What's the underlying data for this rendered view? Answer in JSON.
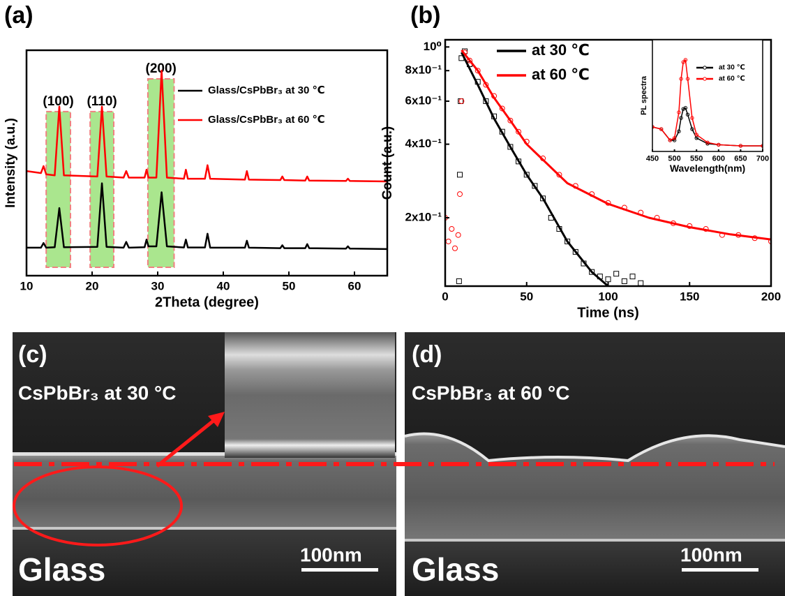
{
  "panel_labels": [
    "(a)",
    "(b)",
    "(c)",
    "(d)"
  ],
  "sem_images": [
    {
      "caption": "CsPbBr₃ at  30 °C",
      "substrate": "Glass",
      "scale_bar": "100nm"
    },
    {
      "caption": "CsPbBr₃ at  60 °C",
      "substrate": "Glass",
      "scale_bar": "100nm"
    }
  ],
  "chart_data": [
    {
      "type": "line",
      "xlabel": "2Theta (degree)",
      "ylabel": "Intensity (a.u.)",
      "xlim": [
        10,
        65
      ],
      "xticks": [
        10,
        20,
        30,
        40,
        50,
        60
      ],
      "ylim": [
        0,
        100
      ],
      "highlights": [
        {
          "label": "(100)",
          "range": [
            13,
            16.7
          ],
          "top": 72.8
        },
        {
          "label": "(110)",
          "range": [
            19.7,
            23.3
          ],
          "top": 72.8
        },
        {
          "label": "(200)",
          "range": [
            28.5,
            32.5
          ],
          "top": 87.3
        }
      ],
      "highlight_color": "#9be27a",
      "x": [
        10,
        12.2,
        12.6,
        13,
        14.3,
        15,
        15.7,
        20.8,
        21.5,
        22.2,
        24.8,
        25.2,
        25.6,
        28,
        28.3,
        28.6,
        29.8,
        30.6,
        31.4,
        34,
        34.3,
        34.6,
        37.2,
        37.6,
        38,
        43.3,
        43.6,
        43.9,
        48.7,
        49,
        49.3,
        52.5,
        52.8,
        53.1,
        58.7,
        59,
        59.3,
        65
      ],
      "series": [
        {
          "name": "Glass/CsPbBr₃ at 30 ℃",
          "color": "#000000",
          "line": true,
          "values": [
            12.4,
            12.4,
            14.5,
            12.4,
            12.6,
            30,
            12.6,
            12.8,
            41,
            12.8,
            12.4,
            15,
            12.4,
            12.6,
            16,
            13,
            13,
            37,
            13,
            12.5,
            16,
            12.5,
            12.5,
            18.6,
            12.4,
            12.4,
            15.5,
            12.4,
            12.2,
            13.5,
            12.2,
            12.2,
            14,
            12.2,
            12,
            13,
            12,
            11.8
          ]
        },
        {
          "name": "Glass/CsPbBr₃ at 60 ℃",
          "color": "#ff0000",
          "line": true,
          "values": [
            46.4,
            45.5,
            48.6,
            45,
            44.5,
            75,
            44.5,
            44,
            75,
            44,
            43.5,
            46.4,
            43.5,
            43.5,
            47,
            43.5,
            43.5,
            91,
            43.5,
            43,
            47,
            43,
            43,
            49,
            43,
            42.6,
            46.4,
            42.6,
            42.4,
            44,
            42.4,
            42.2,
            44,
            42.2,
            42,
            43,
            42,
            41.8
          ]
        }
      ]
    },
    {
      "type": "line",
      "xlabel": "Time (ns)",
      "ylabel": "Count (a.u.)",
      "log_y": true,
      "xlim": [
        0,
        200
      ],
      "xticks": [
        0,
        50,
        100,
        150,
        200
      ],
      "ylim": [
        0.105,
        1.07
      ],
      "yticks": [
        {
          "value": 1,
          "label": "10⁰"
        },
        {
          "value": 0.8,
          "label": "8x10⁻¹"
        },
        {
          "value": 0.6,
          "label": "6x10⁻¹"
        },
        {
          "value": 0.4,
          "label": "4x10⁻¹"
        },
        {
          "value": 0.2,
          "label": "2x10⁻¹"
        }
      ],
      "series": [
        {
          "color": "#000000",
          "marker": "square",
          "x": [
            8.5,
            9,
            9.5,
            10,
            12,
            15,
            20,
            25,
            30,
            35,
            40,
            45,
            50,
            55,
            60,
            65,
            70,
            75,
            80,
            85,
            90,
            95,
            100,
            105,
            110,
            115,
            120
          ],
          "values": [
            0.11,
            0.3,
            0.6,
            0.9,
            0.96,
            0.85,
            0.72,
            0.6,
            0.52,
            0.45,
            0.39,
            0.34,
            0.3,
            0.27,
            0.24,
            0.2,
            0.18,
            0.16,
            0.145,
            0.13,
            0.12,
            0.115,
            0.112,
            0.118,
            0.11,
            0.115,
            0.108
          ]
        },
        {
          "color": "#ff0000",
          "marker": "circle",
          "x": [
            0,
            2,
            4,
            6,
            8,
            9,
            10,
            12,
            15,
            20,
            25,
            30,
            35,
            40,
            45,
            50,
            60,
            70,
            80,
            90,
            100,
            110,
            120,
            130,
            140,
            150,
            160,
            170,
            180,
            190,
            200
          ],
          "values": [
            0.2,
            0.16,
            0.18,
            0.15,
            0.17,
            0.25,
            0.6,
            0.95,
            0.88,
            0.8,
            0.7,
            0.63,
            0.56,
            0.5,
            0.45,
            0.41,
            0.35,
            0.3,
            0.27,
            0.25,
            0.23,
            0.22,
            0.21,
            0.2,
            0.19,
            0.185,
            0.18,
            0.17,
            0.17,
            0.165,
            0.16
          ]
        },
        {
          "name": "at 30 ℃",
          "color": "#000000",
          "line": true,
          "x": [
            10,
            20,
            30,
            40,
            50,
            60,
            75,
            90,
            100
          ],
          "values": [
            0.95,
            0.7,
            0.51,
            0.39,
            0.3,
            0.24,
            0.16,
            0.12,
            0.105
          ]
        },
        {
          "name": "at 60 ℃",
          "color": "#ff0000",
          "line": true,
          "x": [
            10,
            20,
            30,
            40,
            50,
            75,
            100,
            125,
            150,
            175,
            200
          ],
          "values": [
            0.97,
            0.8,
            0.62,
            0.5,
            0.4,
            0.277,
            0.228,
            0.2,
            0.183,
            0.171,
            0.163
          ]
        }
      ]
    },
    {
      "type": "line",
      "xlabel": "Wavelength(nm)",
      "ylabel": "PL spectra",
      "xlim": [
        450,
        700
      ],
      "xticks": [
        450,
        500,
        550,
        600,
        650,
        700
      ],
      "ylim": [
        0,
        1
      ],
      "x": [
        450,
        470,
        490,
        500,
        510,
        515,
        520,
        525,
        530,
        540,
        550,
        575,
        600,
        650,
        700
      ],
      "series": [
        {
          "name": "at 30 ℃",
          "color": "#000000",
          "line": true,
          "marker": "circle",
          "values": [
            0.22,
            0.2,
            0.1,
            0.1,
            0.18,
            0.3,
            0.38,
            0.39,
            0.33,
            0.2,
            0.12,
            0.07,
            0.06,
            0.05,
            0.05
          ]
        },
        {
          "name": "at 60 ℃",
          "color": "#ff0000",
          "line": true,
          "marker": "circle",
          "values": [
            0.22,
            0.2,
            0.1,
            0.12,
            0.35,
            0.65,
            0.8,
            0.82,
            0.65,
            0.3,
            0.15,
            0.08,
            0.06,
            0.05,
            0.05
          ]
        }
      ]
    }
  ]
}
